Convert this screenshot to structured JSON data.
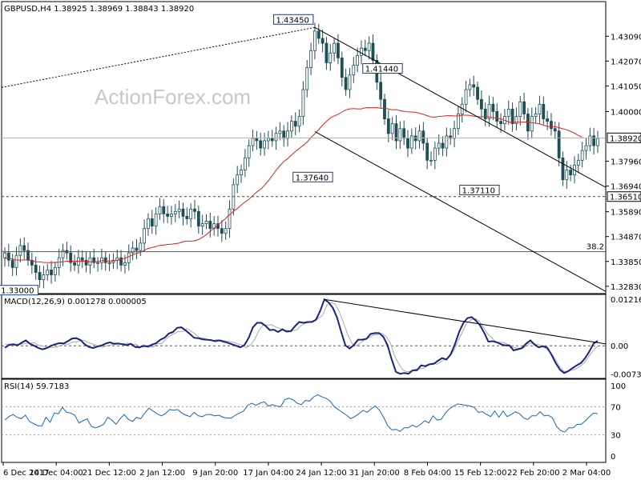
{
  "chart_data": [
    {
      "type": "candlestick",
      "title": "GBPUSD,H4",
      "ohlc": [
        "1.38925",
        "1.38969",
        "1.38843",
        "1.38920"
      ],
      "watermark": "ActionForex.com",
      "ylim": [
        1.3253,
        1.4451
      ],
      "yticks": [
        "1.43090",
        "1.42070",
        "1.41050",
        "1.40000",
        "1.37960",
        "1.36940",
        "1.35890",
        "1.34870",
        "1.33850",
        "1.32830"
      ],
      "current_price": "1.38920",
      "support_level": "1.36510",
      "fib_label": "38.2",
      "fib_level": 1.3425,
      "annotations": [
        {
          "label": "1.43450",
          "value": 1.4345
        },
        {
          "label": "1.41440",
          "value": 1.4144
        },
        {
          "label": "1.37640",
          "value": 1.3764
        },
        {
          "label": "1.37110",
          "value": 1.3711
        },
        {
          "label": "1.33000",
          "value": 1.33
        }
      ],
      "close": [
        1.342,
        1.339,
        1.336,
        1.341,
        1.345,
        1.343,
        1.339,
        1.337,
        1.334,
        1.331,
        1.333,
        1.335,
        1.333,
        1.336,
        1.34,
        1.343,
        1.342,
        1.338,
        1.337,
        1.34,
        1.339,
        1.337,
        1.34,
        1.338,
        1.338,
        1.34,
        1.338,
        1.338,
        1.339,
        1.34,
        1.337,
        1.338,
        1.342,
        1.344,
        1.343,
        1.346,
        1.352,
        1.356,
        1.353,
        1.358,
        1.361,
        1.358,
        1.357,
        1.358,
        1.359,
        1.36,
        1.357,
        1.356,
        1.36,
        1.359,
        1.353,
        1.354,
        1.355,
        1.352,
        1.354,
        1.352,
        1.35,
        1.352,
        1.36,
        1.37,
        1.374,
        1.376,
        1.381,
        1.386,
        1.389,
        1.388,
        1.385,
        1.388,
        1.389,
        1.388,
        1.391,
        1.392,
        1.389,
        1.392,
        1.396,
        1.394,
        1.398,
        1.409,
        1.418,
        1.425,
        1.433,
        1.43,
        1.428,
        1.42,
        1.424,
        1.428,
        1.422,
        1.414,
        1.409,
        1.415,
        1.419,
        1.423,
        1.426,
        1.425,
        1.428,
        1.421,
        1.412,
        1.405,
        1.397,
        1.391,
        1.395,
        1.388,
        1.393,
        1.389,
        1.385,
        1.39,
        1.388,
        1.392,
        1.387,
        1.38,
        1.38,
        1.385,
        1.387,
        1.385,
        1.39,
        1.389,
        1.393,
        1.399,
        1.403,
        1.409,
        1.411,
        1.41,
        1.405,
        1.401,
        1.397,
        1.403,
        1.4,
        1.396,
        1.395,
        1.398,
        1.401,
        1.395,
        1.398,
        1.404,
        1.399,
        1.392,
        1.398,
        1.399,
        1.403,
        1.397,
        1.396,
        1.393,
        1.392,
        1.381,
        1.372,
        1.376,
        1.374,
        1.378,
        1.38,
        1.384,
        1.386,
        1.39,
        1.386,
        1.389
      ],
      "ma": [
        1.3398,
        1.3396,
        1.3395,
        1.3391,
        1.339,
        1.3392,
        1.3391,
        1.3388,
        1.3384,
        1.3383,
        1.3381,
        1.338,
        1.338,
        1.3381,
        1.3382,
        1.3384,
        1.3386,
        1.3386,
        1.3386,
        1.3386,
        1.3386,
        1.3385,
        1.3384,
        1.3383,
        1.3385,
        1.3388,
        1.3387,
        1.3387,
        1.3387,
        1.339,
        1.3393,
        1.3398,
        1.3405,
        1.3412,
        1.3418,
        1.3422,
        1.3431,
        1.3438,
        1.3442,
        1.3446,
        1.3451,
        1.3452,
        1.3455,
        1.3456,
        1.3458,
        1.346,
        1.3466,
        1.3469,
        1.3468,
        1.347,
        1.3475,
        1.3484,
        1.3495,
        1.3508,
        1.3522,
        1.3534,
        1.3548,
        1.3562,
        1.3577,
        1.359,
        1.3602,
        1.3616,
        1.3629,
        1.364,
        1.3655,
        1.367,
        1.3681,
        1.3697,
        1.3716,
        1.3737,
        1.3759,
        1.3778,
        1.3795,
        1.3807,
        1.3822,
        1.3836,
        1.3849,
        1.3861,
        1.3875,
        1.3893,
        1.3909,
        1.3926,
        1.3944,
        1.3959,
        1.3974,
        1.3982,
        1.3989,
        1.3998,
        1.4007,
        1.4011,
        1.4012,
        1.4011,
        1.4011,
        1.4015,
        1.4016,
        1.4015,
        1.4016,
        1.4013,
        1.4013,
        1.4011,
        1.4007,
        1.4008,
        1.4004,
        1.4001,
        1.3999,
        1.3998,
        1.3997,
        1.3992,
        1.3989,
        1.3983,
        1.3978,
        1.3977,
        1.398,
        1.3981,
        1.3983,
        1.3983,
        1.3982,
        1.3982,
        1.3985,
        1.3985,
        1.3984,
        1.3981,
        1.3979,
        1.3978,
        1.398,
        1.3977,
        1.3975,
        1.3972,
        1.397,
        1.3964,
        1.3957,
        1.3955,
        1.3956,
        1.3956,
        1.3957,
        1.3957,
        1.3954,
        1.3952,
        1.395,
        1.3944,
        1.3939,
        1.3938,
        1.3938,
        1.3934,
        1.3929,
        1.3925,
        1.3919,
        1.3911,
        1.3902,
        1.3895
      ],
      "xticks": [
        "6 Dec 2017",
        "14 Dec 04:00",
        "21 Dec 12:00",
        "2 Jan 12:00",
        "9 Jan 20:00",
        "17 Jan 04:00",
        "24 Jan 12:00",
        "31 Jan 20:00",
        "8 Feb 04:00",
        "15 Feb 12:00",
        "22 Feb 20:00",
        "2 Mar 04:00"
      ]
    },
    {
      "type": "line",
      "title": "MACD(12,26,9) 0.001278 0.000005",
      "ylim": [
        -0.0085,
        0.0134
      ],
      "yticks": [
        "0.012164",
        "0.00",
        "-0.007384"
      ],
      "series": [
        {
          "values": [
            -0.0005,
            0.0002,
            0.0004,
            0.0001,
            0.0008,
            0.0014,
            0.0005,
            0,
            -0.0006,
            -0.0009,
            -0.0006,
            0,
            0.0004,
            0.0007,
            0.0006,
            0.0012,
            0.0019,
            0.002,
            0.0015,
            0.0004,
            -0.0003,
            -0.0006,
            -0.0002,
            0.0001,
            0.0006,
            0.0009,
            0.0005,
            0.0006,
            0.0004,
            0.0002,
            0.0005,
            -0.0003,
            -0.0004,
            0,
            -0.0002,
            0.0003,
            0.0007,
            0.0016,
            0.0021,
            0.0032,
            0.0036,
            0.0047,
            0.0048,
            0.004,
            0.0031,
            0.0021,
            0.002,
            0.0017,
            0.0016,
            0.0015,
            0.0012,
            0.0014,
            0.0011,
            0.0008,
            0.0004,
            0,
            -0.0004,
            0.0002,
            0.0021,
            0.0048,
            0.006,
            0.006,
            0.0052,
            0.0041,
            0.0042,
            0.0036,
            0.0043,
            0.0037,
            0.0038,
            0.0051,
            0.0062,
            0.006,
            0.0062,
            0.0062,
            0.0068,
            0.0091,
            0.0121,
            0.0113,
            0.0099,
            0.0074,
            0.0036,
            0.0001,
            -0.0007,
            0.0002,
            0.0016,
            0.0016,
            0.0018,
            0.0031,
            0.0033,
            0.0033,
            0.0024,
            0.0002,
            -0.0035,
            -0.0068,
            -0.0073,
            -0.0071,
            -0.0073,
            -0.0064,
            -0.0064,
            -0.0051,
            -0.0053,
            -0.0048,
            -0.0047,
            -0.0039,
            -0.0032,
            -0.0036,
            -0.0023,
            0.0003,
            0.0035,
            0.0059,
            0.0072,
            0.0075,
            0.0066,
            0.0054,
            0.0034,
            0.0011,
            0.0012,
            0.0009,
            0.0004,
            0.0001,
            0.0001,
            -0.0012,
            -0.0009,
            -0.0006,
            0.0006,
            0.0014,
            0.0003,
            -0.0004,
            -0.0001,
            -0.0005,
            -0.0023,
            -0.0045,
            -0.0062,
            -0.0071,
            -0.0066,
            -0.0058,
            -0.0051,
            -0.0045,
            -0.0032,
            -0.0015,
            0.0006,
            0.0013
          ]
        },
        {
          "values": [
            0.0004,
            0.0004,
            0.0004,
            0.0004,
            0.0004,
            0.0007,
            0.0007,
            0.0008,
            0.0001,
            -0.0001,
            -0.0004,
            -0.0004,
            -0.0004,
            0,
            0.0004,
            0.0004,
            0.001,
            0.001,
            0.0015,
            0.0013,
            0.0007,
            0.0004,
            -0.0001,
            -0.0004,
            0,
            0.0002,
            0.0007,
            0.0005,
            0.0006,
            0.0007,
            0.0003,
            0.0004,
            -0.0004,
            -0.0002,
            -0.0003,
            -0.0003,
            0.0005,
            0.0006,
            0.0017,
            0.0026,
            0.0032,
            0.0037,
            0.0037,
            0.0045,
            0.0038,
            0.003,
            0.0021,
            0.002,
            0.0016,
            0.0013,
            0.0016,
            0.0015,
            0.0013,
            0.0011,
            0.0009,
            0.0005,
            0.0002,
            -0.0005,
            0.0002,
            0.0017,
            0.004,
            0.0054,
            0.0054,
            0.0055,
            0.0049,
            0.0045,
            0.0041,
            0.004,
            0.0039,
            0.0042,
            0.0053,
            0.0059,
            0.0061,
            0.0063,
            0.0072,
            0.0079,
            0.0105,
            0.0113,
            0.0109,
            0.0088,
            0.0059,
            0.0028,
            0.0006,
            0,
            0.0007,
            0.0017,
            0.0021,
            0.0028,
            0.0029,
            0.0033,
            0.0025,
            0.0008,
            -0.0026,
            -0.0047,
            -0.0063,
            -0.0068,
            -0.0066,
            -0.0061,
            -0.006,
            -0.0058,
            -0.0051,
            -0.0045,
            -0.0048,
            -0.0041,
            -0.0035,
            -0.0028,
            -0.0013,
            0.0013,
            0.0035,
            0.0058,
            0.0067,
            0.0071,
            0.0065,
            0.0048,
            0.0031,
            0.0021,
            0.001,
            0.0009,
            0.0008,
            0.0002,
            -0.0004,
            -0.0006,
            -0.0008,
            -0.0002,
            0.0007,
            0.0005,
            0.0003,
            -0.0002,
            -0.0009,
            -0.0019,
            -0.0036,
            -0.0054,
            -0.0067,
            -0.0066,
            -0.0063,
            -0.0059,
            -0.0052,
            -0.0042,
            -0.0026,
            -0.0012,
            -0.0001
          ]
        }
      ]
    },
    {
      "type": "line",
      "title": "RSI(14) 59.7183",
      "ylim": [
        0,
        100
      ],
      "yticks": [
        "100",
        "70",
        "30",
        "0"
      ],
      "series": [
        {
          "values": [
            51,
            56,
            59,
            55,
            53,
            58,
            49,
            46,
            43,
            43,
            55,
            48,
            61,
            60,
            69,
            62,
            61,
            58,
            47,
            50,
            53,
            42,
            40,
            42,
            45,
            55,
            51,
            45,
            53,
            59,
            52,
            49,
            55,
            53,
            61,
            68,
            64,
            60,
            57,
            60,
            66,
            65,
            66,
            61,
            58,
            56,
            62,
            57,
            56,
            59,
            59,
            57,
            58,
            55,
            54,
            54,
            58,
            61,
            64,
            72,
            75,
            72,
            75,
            77,
            71,
            73,
            71,
            70,
            80,
            82,
            80,
            75,
            73,
            79,
            78,
            84,
            87,
            84,
            82,
            78,
            70,
            66,
            62,
            58,
            53,
            56,
            60,
            65,
            62,
            67,
            71,
            65,
            55,
            43,
            37,
            38,
            35,
            40,
            40,
            44,
            41,
            45,
            50,
            47,
            57,
            51,
            52,
            61,
            67,
            71,
            74,
            73,
            72,
            71,
            69,
            62,
            63,
            59,
            56,
            64,
            55,
            64,
            56,
            59,
            63,
            60,
            54,
            52,
            57,
            57,
            63,
            57,
            58,
            54,
            42,
            36,
            34,
            40,
            40,
            45,
            45,
            50,
            56,
            61,
            60
          ]
        }
      ]
    }
  ]
}
